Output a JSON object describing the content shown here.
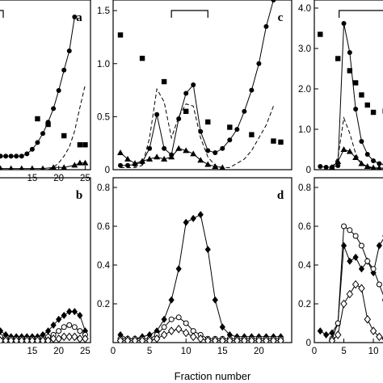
{
  "figure": {
    "xlabel": "Fraction number"
  },
  "chart_data": [
    {
      "panel": "a",
      "type": "line",
      "xticks": [
        "15",
        "20",
        "25"
      ],
      "yticks": [],
      "xlim": [
        8,
        26
      ],
      "ylim": [
        0,
        1.5
      ],
      "series": [
        {
          "marker": "filled-circle",
          "line": "solid",
          "x": [
            9,
            10,
            11,
            12,
            13,
            14,
            15,
            16,
            17,
            18,
            19,
            20,
            21,
            22,
            23
          ],
          "y": [
            0.12,
            0.12,
            0.12,
            0.12,
            0.12,
            0.14,
            0.18,
            0.24,
            0.32,
            0.42,
            0.54,
            0.7,
            0.88,
            1.05,
            1.35
          ]
        },
        {
          "marker": "filled-square",
          "line": "none",
          "x": [
            16,
            18,
            21,
            24,
            25
          ],
          "y": [
            0.45,
            0.4,
            0.3,
            0.22,
            0.22
          ]
        },
        {
          "marker": "filled-triangle",
          "line": "solid",
          "x": [
            9,
            11,
            13,
            15,
            17,
            19,
            21,
            23,
            24,
            25
          ],
          "y": [
            0.01,
            0.01,
            0.01,
            0.01,
            0.01,
            0.02,
            0.02,
            0.04,
            0.06,
            0.06
          ]
        },
        {
          "marker": "none",
          "line": "dashed",
          "x": [
            18,
            19,
            20,
            21,
            22,
            23,
            24,
            25
          ],
          "y": [
            0.0,
            0.02,
            0.06,
            0.12,
            0.2,
            0.34,
            0.55,
            0.75
          ]
        }
      ]
    },
    {
      "panel": "b",
      "type": "line",
      "xticks": [
        "15",
        "20",
        "25"
      ],
      "yticks": [],
      "xlim": [
        8,
        26
      ],
      "ylim": [
        0,
        0.85
      ],
      "series": [
        {
          "marker": "filled-diamond",
          "line": "solid",
          "x": [
            9,
            10,
            11,
            12,
            13,
            14,
            15,
            16,
            17,
            18,
            19,
            20,
            21,
            22,
            23,
            24,
            25
          ],
          "y": [
            0.06,
            0.04,
            0.03,
            0.03,
            0.03,
            0.03,
            0.03,
            0.03,
            0.04,
            0.06,
            0.09,
            0.12,
            0.14,
            0.16,
            0.16,
            0.14,
            0.06
          ]
        },
        {
          "marker": "open-circle",
          "line": "solid",
          "x": [
            9,
            10,
            11,
            12,
            13,
            14,
            15,
            16,
            17,
            18,
            19,
            20,
            21,
            22,
            23,
            24,
            25
          ],
          "y": [
            0.03,
            0.02,
            0.02,
            0.02,
            0.02,
            0.02,
            0.02,
            0.02,
            0.02,
            0.03,
            0.04,
            0.06,
            0.08,
            0.09,
            0.08,
            0.06,
            0.04
          ]
        },
        {
          "marker": "open-diamond",
          "line": "solid",
          "x": [
            9,
            10,
            11,
            12,
            13,
            14,
            15,
            16,
            17,
            18,
            19,
            20,
            21,
            22,
            23,
            24,
            25
          ],
          "y": [
            0.01,
            0.01,
            0.01,
            0.01,
            0.01,
            0.01,
            0.01,
            0.01,
            0.01,
            0.01,
            0.02,
            0.02,
            0.03,
            0.03,
            0.03,
            0.02,
            0.02
          ]
        }
      ]
    },
    {
      "panel": "c",
      "type": "line",
      "xticks": [],
      "yticks": [
        "0",
        "0.5",
        "1.0",
        "1.5"
      ],
      "xlim": [
        0,
        24.5
      ],
      "ylim": [
        0,
        1.6
      ],
      "series": [
        {
          "marker": "filled-circle",
          "line": "solid",
          "x": [
            1,
            2,
            3,
            4,
            5,
            6,
            7,
            8,
            9,
            10,
            11,
            12,
            13,
            14,
            15,
            16,
            17,
            18,
            19,
            20,
            21,
            22
          ],
          "y": [
            0.04,
            0.04,
            0.05,
            0.07,
            0.2,
            0.52,
            0.2,
            0.14,
            0.48,
            0.72,
            0.8,
            0.36,
            0.18,
            0.16,
            0.2,
            0.28,
            0.38,
            0.55,
            0.75,
            1.0,
            1.35,
            1.6
          ]
        },
        {
          "marker": "filled-square",
          "line": "none",
          "x": [
            1,
            4,
            7,
            10,
            13,
            16,
            19,
            22,
            23
          ],
          "y": [
            1.27,
            1.05,
            0.83,
            0.55,
            0.45,
            0.4,
            0.33,
            0.27,
            0.26
          ]
        },
        {
          "marker": "filled-triangle",
          "line": "solid",
          "x": [
            1,
            2,
            3,
            4,
            5,
            6,
            7,
            8,
            9,
            10,
            11,
            12,
            13,
            14,
            15
          ],
          "y": [
            0.16,
            0.1,
            0.06,
            0.08,
            0.1,
            0.12,
            0.1,
            0.12,
            0.2,
            0.18,
            0.15,
            0.09,
            0.05,
            0.03,
            0.02
          ]
        },
        {
          "marker": "none",
          "line": "dashed",
          "x": [
            1,
            2,
            3,
            4,
            5,
            6,
            7,
            8,
            9,
            10,
            11,
            12,
            13,
            14,
            15,
            16,
            17,
            18,
            19,
            20,
            21,
            22
          ],
          "y": [
            0.02,
            0.02,
            0.02,
            0.04,
            0.3,
            0.76,
            0.64,
            0.3,
            0.5,
            0.62,
            0.6,
            0.3,
            0.12,
            0.04,
            0.02,
            0.02,
            0.06,
            0.1,
            0.18,
            0.3,
            0.42,
            0.6
          ]
        }
      ]
    },
    {
      "panel": "d",
      "type": "line",
      "xticks": [
        "0",
        "5",
        "10",
        "15",
        "20"
      ],
      "yticks": [
        "0.2",
        "0.4",
        "0.6",
        "0.8"
      ],
      "xlim": [
        0,
        24.5
      ],
      "ylim": [
        0,
        0.85
      ],
      "series": [
        {
          "marker": "filled-diamond",
          "line": "solid",
          "x": [
            1,
            2,
            3,
            4,
            5,
            6,
            7,
            8,
            9,
            10,
            11,
            12,
            13,
            14,
            15,
            16,
            17,
            18,
            19,
            20,
            21,
            22,
            23
          ],
          "y": [
            0.04,
            0.02,
            0.02,
            0.03,
            0.04,
            0.06,
            0.12,
            0.22,
            0.38,
            0.62,
            0.64,
            0.66,
            0.48,
            0.22,
            0.08,
            0.04,
            0.03,
            0.03,
            0.03,
            0.03,
            0.03,
            0.03,
            0.03
          ]
        },
        {
          "marker": "open-circle",
          "line": "solid",
          "x": [
            1,
            2,
            3,
            4,
            5,
            6,
            7,
            8,
            9,
            10,
            11,
            12,
            13,
            14,
            15,
            16,
            17,
            18,
            19,
            20,
            21,
            22,
            23
          ],
          "y": [
            0.02,
            0.02,
            0.02,
            0.02,
            0.02,
            0.04,
            0.08,
            0.12,
            0.13,
            0.1,
            0.06,
            0.04,
            0.02,
            0.02,
            0.02,
            0.02,
            0.02,
            0.02,
            0.02,
            0.02,
            0.02,
            0.02,
            0.02
          ]
        },
        {
          "marker": "open-diamond",
          "line": "solid",
          "x": [
            1,
            2,
            3,
            4,
            5,
            6,
            7,
            8,
            9,
            10,
            11,
            12,
            13,
            14,
            15,
            16,
            17,
            18,
            19,
            20,
            21,
            22,
            23
          ],
          "y": [
            0.01,
            0.01,
            0.01,
            0.01,
            0.01,
            0.02,
            0.04,
            0.06,
            0.07,
            0.05,
            0.03,
            0.02,
            0.01,
            0.01,
            0.01,
            0.01,
            0.01,
            0.01,
            0.01,
            0.01,
            0.01,
            0.01,
            0.01
          ]
        }
      ]
    },
    {
      "panel": "e",
      "type": "line",
      "xticks": [],
      "yticks": [
        "0",
        "1.0",
        "2.0",
        "3.0",
        "4.0"
      ],
      "xlim": [
        0,
        13
      ],
      "ylim": [
        0,
        4.2
      ],
      "series": [
        {
          "marker": "filled-circle",
          "line": "solid",
          "x": [
            1,
            2,
            3,
            4,
            5,
            6,
            7,
            8,
            9,
            10,
            11,
            12
          ],
          "y": [
            0.08,
            0.06,
            0.06,
            0.1,
            3.62,
            2.9,
            1.5,
            0.7,
            0.38,
            0.22,
            0.15,
            0.12
          ]
        },
        {
          "marker": "filled-square",
          "line": "none",
          "x": [
            1,
            4,
            6,
            7,
            8,
            9,
            10,
            12
          ],
          "y": [
            3.35,
            2.75,
            2.45,
            2.15,
            1.85,
            1.6,
            1.42,
            1.45
          ]
        },
        {
          "marker": "filled-triangle",
          "line": "solid",
          "x": [
            3,
            4,
            5,
            6,
            7,
            8,
            9,
            10,
            11,
            12
          ],
          "y": [
            0.06,
            0.2,
            0.5,
            0.45,
            0.3,
            0.15,
            0.08,
            0.05,
            0.04,
            0.04
          ]
        },
        {
          "marker": "none",
          "line": "dashed",
          "x": [
            3,
            4,
            5,
            6,
            7,
            8,
            9,
            10,
            11,
            12
          ],
          "y": [
            0.05,
            0.3,
            1.28,
            0.9,
            0.4,
            0.15,
            0.06,
            0.04,
            0.03,
            0.03
          ]
        }
      ]
    },
    {
      "panel": "f",
      "type": "line",
      "xticks": [
        "0",
        "5",
        "10"
      ],
      "yticks": [
        "0",
        "0.2",
        "0.4",
        "0.6",
        "0.8"
      ],
      "xlim": [
        0,
        13
      ],
      "ylim": [
        0,
        0.85
      ],
      "series": [
        {
          "marker": "filled-diamond",
          "line": "solid",
          "x": [
            1,
            2,
            3,
            4,
            5,
            6,
            7,
            8,
            9,
            10,
            11,
            12,
            13
          ],
          "y": [
            0.06,
            0.04,
            0.05,
            0.1,
            0.5,
            0.42,
            0.44,
            0.38,
            0.42,
            0.36,
            0.5,
            0.55,
            0.4
          ]
        },
        {
          "marker": "open-circle",
          "line": "solid",
          "x": [
            3,
            4,
            5,
            6,
            7,
            8,
            9,
            10,
            11,
            12,
            13
          ],
          "y": [
            0.02,
            0.1,
            0.6,
            0.58,
            0.55,
            0.5,
            0.42,
            0.38,
            0.3,
            0.22,
            0.12
          ]
        },
        {
          "marker": "open-diamond",
          "line": "solid",
          "x": [
            3,
            4,
            5,
            6,
            7,
            8,
            9,
            10,
            11,
            12,
            13
          ],
          "y": [
            0.01,
            0.04,
            0.2,
            0.25,
            0.3,
            0.28,
            0.12,
            0.06,
            0.03,
            0.02,
            0.02
          ]
        }
      ]
    }
  ],
  "panels_text": {
    "a": "a",
    "b": "b",
    "c": "c",
    "d": "d"
  }
}
